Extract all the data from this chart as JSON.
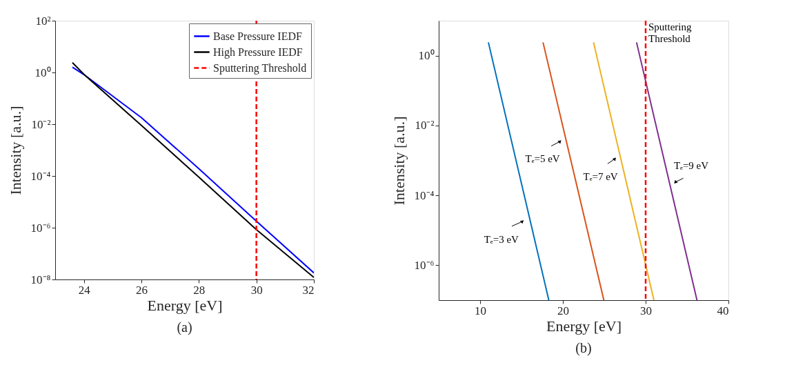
{
  "chart_data": [
    {
      "type": "line",
      "title": "(a)",
      "xlabel": "Energy [eV]",
      "ylabel": "Intensity [a.u.]",
      "x": [
        23.6,
        24,
        26,
        28,
        30,
        32
      ],
      "series": [
        {
          "name": "Base Pressure IEDF",
          "color": "#0000ff",
          "values": [
            1.6,
            0.83,
            0.018,
            0.00019,
            1.8e-06,
            1.8e-08
          ]
        },
        {
          "name": "High Pressure IEDF",
          "color": "#000000",
          "values": [
            2.4,
            0.85,
            0.009,
            9e-05,
            8.5e-07,
            1.2e-08
          ]
        }
      ],
      "xlim": [
        23,
        32
      ],
      "xticks": [
        24,
        26,
        28,
        30,
        32
      ],
      "ylim": [
        1e-08,
        100
      ],
      "yticks": [
        {
          "value": 1e-08,
          "label": "10⁻⁸"
        },
        {
          "value": 1e-06,
          "label": "10⁻⁶"
        },
        {
          "value": 0.0001,
          "label": "10⁻⁴"
        },
        {
          "value": 0.01,
          "label": "10⁻²"
        },
        {
          "value": 1,
          "label": "10⁰"
        },
        {
          "value": 100,
          "label": "10²"
        }
      ],
      "log": true,
      "grid": false,
      "legend": "top right",
      "ref_lines": [
        {
          "axis": "x",
          "value": 30,
          "label": "Sputtering Threshold",
          "color": "#ff0000",
          "line_style": "dashed"
        }
      ]
    },
    {
      "type": "line",
      "title": "(b)",
      "xlabel": "Energy [eV]",
      "ylabel": "Intensity [a.u.]",
      "series": [
        {
          "color": "#0072bd",
          "x": [
            11.0,
            18.3
          ],
          "values": [
            2.4,
            1e-07
          ]
        },
        {
          "color": "#d95319",
          "x": [
            17.6,
            24.95
          ],
          "values": [
            2.4,
            1e-07
          ]
        },
        {
          "color": "#edb120",
          "x": [
            23.7,
            31.0
          ],
          "values": [
            2.4,
            1e-07
          ]
        },
        {
          "color": "#7e2f8e",
          "x": [
            28.9,
            36.2
          ],
          "values": [
            2.4,
            1e-07
          ]
        }
      ],
      "xlim": [
        5,
        40
      ],
      "xticks": [
        10,
        20,
        30,
        40
      ],
      "ylim": [
        1e-07,
        10
      ],
      "yticks": [
        {
          "value": 1e-06,
          "label": "10⁻⁶"
        },
        {
          "value": 0.0001,
          "label": "10⁻⁴"
        },
        {
          "value": 0.01,
          "label": "10⁻²"
        },
        {
          "value": 1,
          "label": "10⁰"
        }
      ],
      "log": true,
      "grid": false,
      "ref_lines": [
        {
          "axis": "x",
          "value": 30,
          "label": "Sputtering Threshold",
          "color": "#ff0000",
          "line_style": "dashed"
        }
      ],
      "annotations": [
        {
          "text": "Tₑ=3 eV",
          "x": 15.9,
          "y": 2.6e-05
        },
        {
          "text": "Tₑ=5 eV",
          "x": 20.3,
          "y": 0.005
        },
        {
          "text": "Tₑ=7 eV",
          "x": 26.8,
          "y": 0.0016
        },
        {
          "text": "Tₑ=9 eV",
          "x": 33.0,
          "y": 0.00017
        }
      ]
    }
  ]
}
